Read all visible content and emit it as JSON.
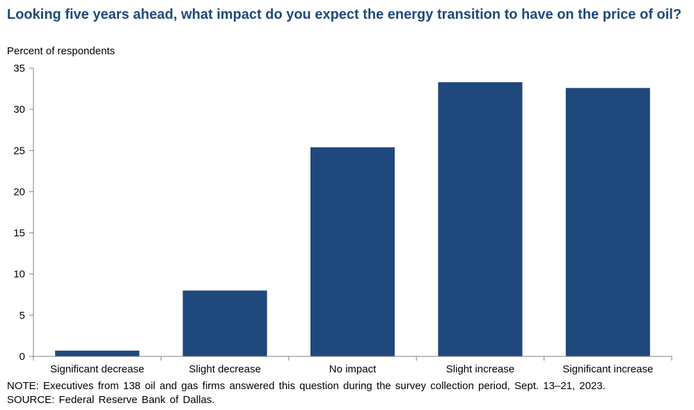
{
  "title": "Looking five years ahead, what impact do you expect the energy transition to have on the price of oil?",
  "note": "NOTE:  Executives from 138 oil and gas firms answered this question during the survey collection period, Sept. 13–21, 2023.",
  "source": "SOURCE:  Federal Reserve Bank of Dallas.",
  "colors": {
    "bar": "#1f497d",
    "title": "#1f497d"
  },
  "chart_data": {
    "type": "bar",
    "title": "Looking five years ahead, what impact do you expect the energy transition to have on the price of oil?",
    "ylabel": "Percent of respondents",
    "xlabel": "",
    "categories": [
      "Significant decrease",
      "Slight decrease",
      "No impact",
      "Slight increase",
      "Significant increase"
    ],
    "values": [
      0.7,
      8.0,
      25.4,
      33.3,
      32.6
    ],
    "ylim": [
      0,
      35
    ],
    "yticks": [
      0,
      5,
      10,
      15,
      20,
      25,
      30,
      35
    ],
    "grid": false,
    "legend": "none"
  }
}
